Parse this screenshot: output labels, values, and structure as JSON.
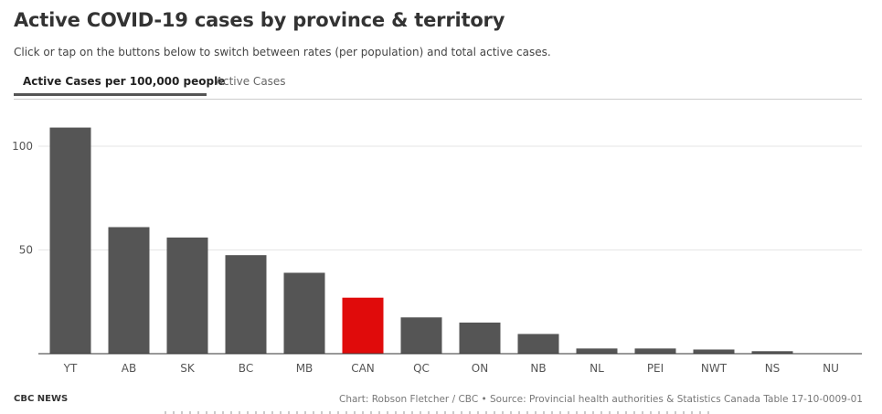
{
  "header": {
    "title": "Active COVID-19 cases by province & territory",
    "subtitle": "Click or tap on the buttons below to switch between rates (per population) and total active cases."
  },
  "tabs": [
    {
      "label": "Active Cases per 100,000 people",
      "active": true
    },
    {
      "label": "Active Cases",
      "active": false
    }
  ],
  "footer": {
    "brand": "CBC NEWS",
    "credit": "Chart: Robson Fletcher / CBC • Source: Provincial health authorities & Statistics Canada Table 17-10-0009-01"
  },
  "colors": {
    "bar": "#555555",
    "highlight": "#e00b0b",
    "grid": "#e6e6e6",
    "axis": "#333333",
    "tick_text": "#555555"
  },
  "chart_data": {
    "type": "bar",
    "title": "",
    "xlabel": "",
    "ylabel": "",
    "categories": [
      "YT",
      "AB",
      "SK",
      "BC",
      "MB",
      "CAN",
      "QC",
      "ON",
      "NB",
      "NL",
      "PEI",
      "NWT",
      "NS",
      "NU"
    ],
    "values": [
      109,
      61,
      56,
      47.5,
      39,
      27,
      17.5,
      15,
      9.5,
      2.5,
      2.5,
      2,
      1.2,
      0
    ],
    "highlight": "CAN",
    "ylim": [
      0,
      120
    ],
    "yticks": [
      50,
      100
    ],
    "grid": true,
    "legend": "none"
  }
}
